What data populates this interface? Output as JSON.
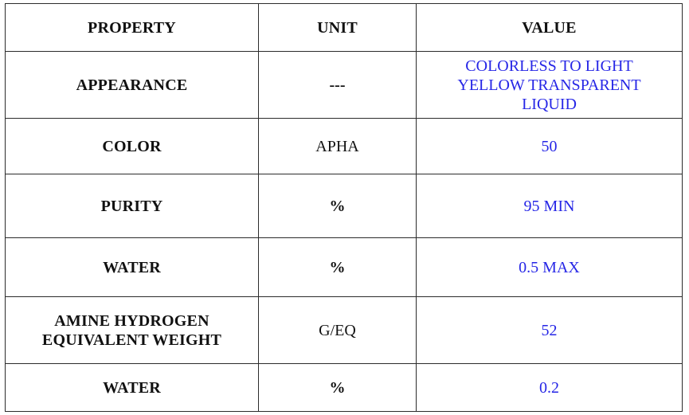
{
  "table": {
    "headers": [
      "PROPERTY",
      "UNIT",
      "VALUE"
    ],
    "rows": [
      {
        "property": "APPEARANCE",
        "unit": "---",
        "value": "COLORLESS TO LIGHT YELLOW TRANSPARENT LIQUID"
      },
      {
        "property": "COLOR",
        "unit": "APHA",
        "value": "50"
      },
      {
        "property": "PURITY",
        "unit": "%",
        "value": "95 MIN"
      },
      {
        "property": "WATER",
        "unit": "%",
        "value": "0.5 MAX"
      },
      {
        "property": "AMINE HYDROGEN EQUIVALENT WEIGHT",
        "unit": "G/EQ",
        "value": "52"
      },
      {
        "property": "WATER",
        "unit": "%",
        "value": "0.2"
      }
    ]
  },
  "colors": {
    "value_text": "#2626e6",
    "text": "#111111",
    "border": "#2b2b2b"
  }
}
